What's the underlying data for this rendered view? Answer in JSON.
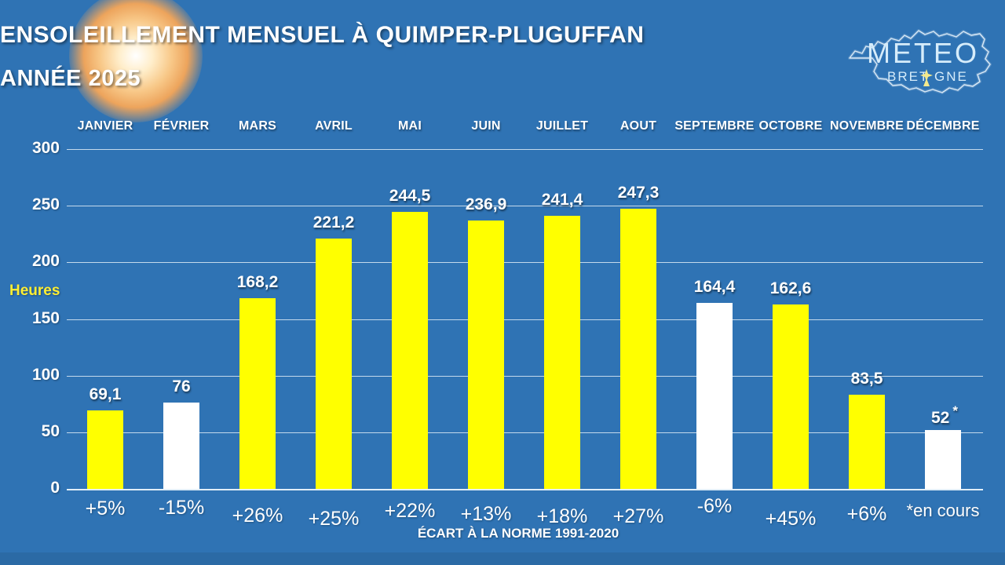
{
  "title_line1": "ENSOLEILLEMENT MENSUEL À QUIMPER-PLUGUFFAN",
  "title_line2": "ANNÉE 2025",
  "logo": {
    "name": "Météo Bretagne",
    "text_top": "METEO",
    "text_bottom_left": "BRET",
    "text_bottom_right": "GNE",
    "ermine_color": "#f3e98c",
    "outline_color": "#e9f4fd"
  },
  "axis": {
    "unit_label": "Heures",
    "ticks": [
      0,
      50,
      100,
      150,
      200,
      250,
      300
    ]
  },
  "footer_label": "ÉCART À LA NORME 1991-2020",
  "colors": {
    "background": "#2f73b4",
    "bar_above_norm": "#ffff00",
    "bar_below_norm": "#ffffff",
    "gridline": "#deebf6",
    "unit_label": "#feee33"
  },
  "chart_data": {
    "type": "bar",
    "title": "ENSOLEILLEMENT MENSUEL À QUIMPER-PLUGUFFAN — ANNÉE 2025",
    "xlabel": "ÉCART À LA NORME 1991-2020",
    "ylabel": "Heures",
    "ylim": [
      0,
      300
    ],
    "grid": true,
    "categories": [
      "JANVIER",
      "FÉVRIER",
      "MARS",
      "AVRIL",
      "MAI",
      "JUIN",
      "JUILLET",
      "AOUT",
      "SEPTEMBRE",
      "OCTOBRE",
      "NOVEMBRE",
      "DÉCEMBRE"
    ],
    "values": [
      69.1,
      76,
      168.2,
      221.2,
      244.5,
      236.9,
      241.4,
      247.3,
      164.4,
      162.6,
      83.5,
      52
    ],
    "value_labels": [
      "69,1",
      "76",
      "168,2",
      "221,2",
      "244,5",
      "236,9",
      "241,4",
      "247,3",
      "164,4",
      "162,6",
      "83,5",
      "52"
    ],
    "bar_colors": [
      "#ffff00",
      "#ffffff",
      "#ffff00",
      "#ffff00",
      "#ffff00",
      "#ffff00",
      "#ffff00",
      "#ffff00",
      "#ffffff",
      "#ffff00",
      "#ffff00",
      "#ffffff"
    ],
    "deviation_labels": [
      "+5%",
      "-15%",
      "+26%",
      "+25%",
      "+22%",
      "+13%",
      "+18%",
      "+27%",
      "-6%",
      "+45%",
      "+6%",
      "*en cours"
    ],
    "deviations_pct": [
      5,
      -15,
      26,
      25,
      22,
      13,
      18,
      27,
      -6,
      45,
      6,
      null
    ],
    "incomplete_month_index": 11,
    "incomplete_note": "*en cours"
  }
}
